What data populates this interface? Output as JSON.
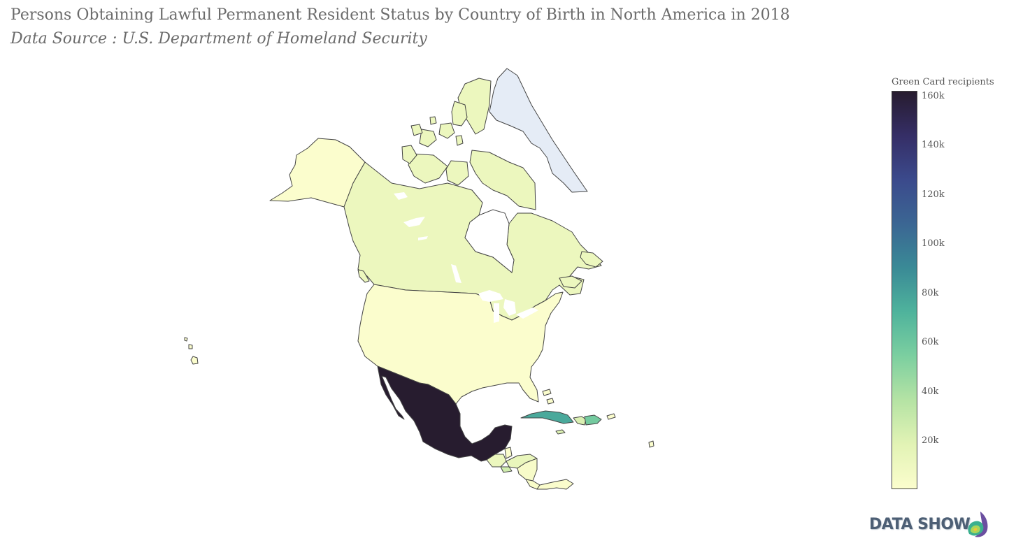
{
  "title": "Persons Obtaining Lawful Permanent Resident Status by Country of Birth in North America in 2018",
  "subtitle": "Data Source : U.S. Department of Homeland Security",
  "colorbar": {
    "title": "Green Card recipients",
    "ticks": [
      "160k",
      "140k",
      "120k",
      "100k",
      "80k",
      "60k",
      "40k",
      "20k"
    ],
    "colorscale": [
      "#fbfdcd",
      "#e2f3b5",
      "#b5e3a4",
      "#7ccfa0",
      "#4fb39c",
      "#3a8a96",
      "#3b6693",
      "#3b4a8c",
      "#352e66",
      "#271c2f"
    ]
  },
  "chart_data": {
    "type": "choropleth",
    "title": "Persons Obtaining Lawful Permanent Resident Status by Country of Birth in North America in 2018",
    "colorbar_title": "Green Card recipients",
    "range": [
      0,
      161000
    ],
    "regions": [
      {
        "region": "Mexico",
        "value": 161000
      },
      {
        "region": "Cuba",
        "value": 76000
      },
      {
        "region": "Dominican Republic",
        "value": 57000
      },
      {
        "region": "Jamaica",
        "value": 20000
      },
      {
        "region": "Haiti",
        "value": 21000
      },
      {
        "region": "El Salvador",
        "value": 25000
      },
      {
        "region": "Guatemala",
        "value": 11000
      },
      {
        "region": "Honduras",
        "value": 13000
      },
      {
        "region": "Canada",
        "value": 11000
      },
      {
        "region": "Nicaragua",
        "value": 3000
      },
      {
        "region": "Costa Rica",
        "value": 2000
      },
      {
        "region": "Panama",
        "value": 1000
      },
      {
        "region": "Belize",
        "value": 1000
      },
      {
        "region": "Bahamas",
        "value": 1000
      },
      {
        "region": "Puerto Rico",
        "value": 0
      },
      {
        "region": "United States",
        "value": 0
      },
      {
        "region": "Greenland",
        "value": null
      }
    ]
  },
  "brand": {
    "name": "DATA SHOW"
  }
}
